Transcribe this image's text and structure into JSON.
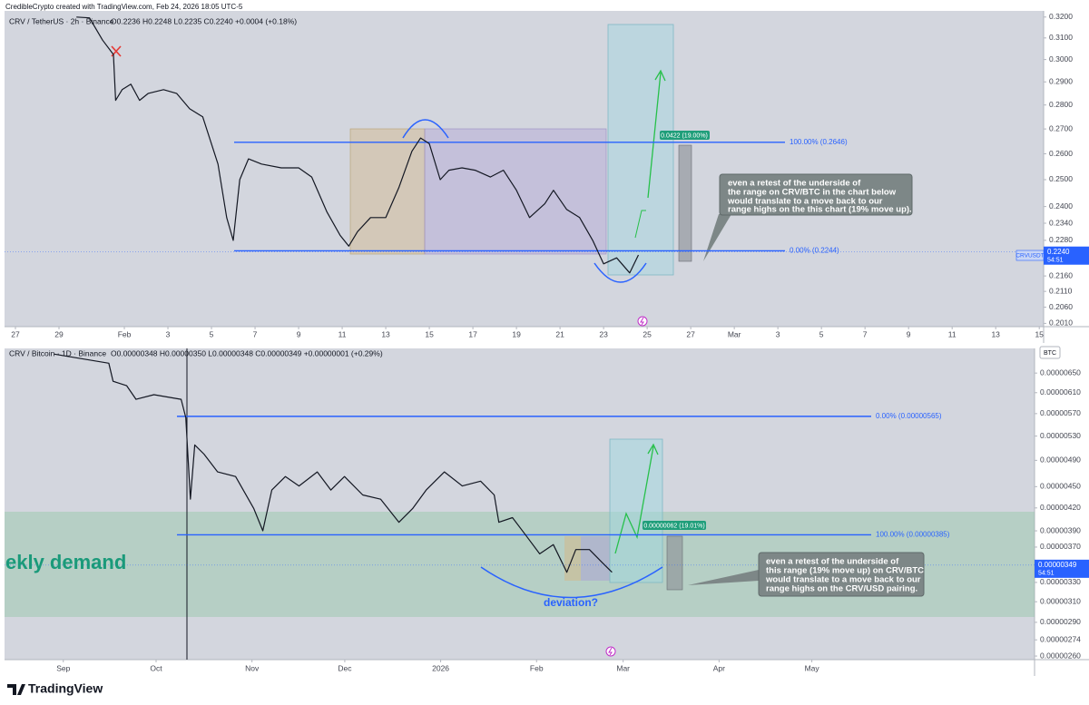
{
  "header": {
    "attribution": "CredibleCrypto created with TradingView.com, Feb 24, 2026 18:05 UTC-5"
  },
  "footer": {
    "brand": "TradingView"
  },
  "chart_data": [
    {
      "type": "line",
      "title": "CRV / TetherUS · 2h · Binance",
      "ohlc": "O0.2236 H0.2248 L0.2235 C0.2240 +0.0004 (+0.18%)",
      "log_scale": true,
      "grid": false,
      "color": "#131722",
      "x": [
        2.8,
        3.4,
        4.0,
        4.5,
        4.6,
        4.9,
        5.3,
        5.7,
        6.1,
        6.8,
        7.4,
        8.0,
        8.6,
        9.3,
        9.7,
        10.0,
        10.3,
        10.7,
        11.3,
        12.2,
        13.0,
        13.6,
        14.3,
        14.9,
        15.3,
        15.7,
        16.3,
        17.0,
        17.6,
        18.2,
        18.6,
        19.0,
        19.5,
        19.9,
        20.5,
        21.1,
        21.8,
        22.4,
        23.0,
        23.6,
        24.3,
        24.7,
        25.3,
        25.9,
        26.5,
        27.0,
        27.6,
        28.2,
        28.6
      ],
      "values": [
        0.32,
        0.3196,
        0.309,
        0.3023,
        0.282,
        0.2866,
        0.289,
        0.282,
        0.285,
        0.2866,
        0.285,
        0.2784,
        0.275,
        0.256,
        0.236,
        0.228,
        0.25,
        0.258,
        0.256,
        0.2545,
        0.2545,
        0.251,
        0.238,
        0.2298,
        0.226,
        0.231,
        0.236,
        0.236,
        0.247,
        0.261,
        0.2663,
        0.264,
        0.25,
        0.2536,
        0.2545,
        0.2536,
        0.251,
        0.2536,
        0.246,
        0.236,
        0.241,
        0.246,
        0.239,
        0.236,
        0.228,
        0.22,
        0.222,
        0.217,
        0.223
      ],
      "xlim": [
        -0.5,
        47.2
      ],
      "xticks": [
        {
          "value": 0,
          "label": "27"
        },
        {
          "value": 2,
          "label": "29"
        },
        {
          "value": 5,
          "label": "Feb"
        },
        {
          "value": 7,
          "label": "3"
        },
        {
          "value": 9,
          "label": "5"
        },
        {
          "value": 11,
          "label": "7"
        },
        {
          "value": 13,
          "label": "9"
        },
        {
          "value": 15,
          "label": "11"
        },
        {
          "value": 17,
          "label": "13"
        },
        {
          "value": 19,
          "label": "15"
        },
        {
          "value": 21,
          "label": "17"
        },
        {
          "value": 23,
          "label": "19"
        },
        {
          "value": 25,
          "label": "21"
        },
        {
          "value": 27,
          "label": "23"
        },
        {
          "value": 29,
          "label": "25"
        },
        {
          "value": 31,
          "label": "27"
        },
        {
          "value": 33,
          "label": "Mar"
        },
        {
          "value": 35,
          "label": "3"
        },
        {
          "value": 37,
          "label": "5"
        },
        {
          "value": 39,
          "label": "7"
        },
        {
          "value": 41,
          "label": "9"
        },
        {
          "value": 43,
          "label": "11"
        },
        {
          "value": 45,
          "label": "13"
        },
        {
          "value": 47,
          "label": "15"
        }
      ],
      "ylim": [
        0.2,
        0.323
      ],
      "yticks": [
        {
          "value": 0.32,
          "label": "0.3200"
        },
        {
          "value": 0.31,
          "label": "0.3100"
        },
        {
          "value": 0.3,
          "label": "0.3000"
        },
        {
          "value": 0.29,
          "label": "0.2900"
        },
        {
          "value": 0.28,
          "label": "0.2800"
        },
        {
          "value": 0.27,
          "label": "0.2700"
        },
        {
          "value": 0.26,
          "label": "0.2600"
        },
        {
          "value": 0.25,
          "label": "0.2500"
        },
        {
          "value": 0.24,
          "label": "0.2400"
        },
        {
          "value": 0.234,
          "label": "0.2340"
        },
        {
          "value": 0.228,
          "label": "0.2280"
        },
        {
          "value": 0.216,
          "label": "0.2160"
        },
        {
          "value": 0.211,
          "label": "0.2110"
        },
        {
          "value": 0.206,
          "label": "0.2060"
        },
        {
          "value": 0.201,
          "label": "0.2010"
        }
      ],
      "levels": [
        {
          "value": 0.2646,
          "label": "100.00% (0.2646)"
        },
        {
          "value": 0.2244,
          "label": "0.00% (0.2244)"
        }
      ],
      "last_price": {
        "value": 0.224,
        "label": "0.2240"
      },
      "countdown": "54:51",
      "price_tag_symbol": "CRVUSDT",
      "projection_label": "0.0422 (19.00%)",
      "callout": [
        "even a retest of the underside of",
        "the range on CRV/BTC in the chart below",
        "would translate to a move back to our",
        "range highs on the this chart (19% move up)."
      ]
    },
    {
      "type": "line",
      "title": "CRV / Bitcoin · 1D · Binance",
      "ohlc": "O0.00000348 H0.00000350 L0.00000348 C0.00000349 +0.00000001 (+0.29%)",
      "log_scale": true,
      "grid": false,
      "color": "#131722",
      "x": [
        -2.9,
        5.9,
        14.7,
        16.1,
        20.5,
        23.5,
        29.3,
        38.1,
        39.6,
        41.1,
        42.5,
        45.5,
        49.9,
        55.7,
        61.6,
        64.5,
        67.4,
        71.8,
        76.2,
        82.1,
        86.5,
        90.9,
        96.8,
        102.6,
        108.5,
        112.9,
        117.3,
        123.2,
        129.0,
        134.9,
        139.3,
        140.8,
        145.2,
        149.6,
        154.0,
        158.4,
        162.8,
        165.7,
        170.1,
        174.5,
        177.4
      ],
      "values": [
        6.91e-06,
        6.81e-06,
        6.71e-06,
        6.33e-06,
        6.24e-06,
        5.97e-06,
        6.06e-06,
        5.97e-06,
        5.63e-06,
        4.32e-06,
        5.15e-06,
        5e-06,
        4.72e-06,
        4.65e-06,
        4.19e-06,
        3.9e-06,
        4.45e-06,
        4.65e-06,
        4.51e-06,
        4.72e-06,
        4.45e-06,
        4.65e-06,
        4.38e-06,
        4.32e-06,
        4.01e-06,
        4.19e-06,
        4.45e-06,
        4.72e-06,
        4.51e-06,
        4.58e-06,
        4.38e-06,
        4.01e-06,
        4.07e-06,
        3.84e-06,
        3.62e-06,
        3.73e-06,
        3.41e-06,
        3.67e-06,
        3.67e-06,
        3.51e-06,
        3.41e-06
      ],
      "xlim": [
        -19,
        314
      ],
      "xticks": [
        {
          "value": 0,
          "label": "Sep"
        },
        {
          "value": 30,
          "label": "Oct"
        },
        {
          "value": 61,
          "label": "Nov"
        },
        {
          "value": 91,
          "label": "Dec"
        },
        {
          "value": 122,
          "label": "2026"
        },
        {
          "value": 153,
          "label": "Feb"
        },
        {
          "value": 181,
          "label": "Mar"
        },
        {
          "value": 212,
          "label": "Apr"
        },
        {
          "value": 242,
          "label": "May"
        }
      ],
      "ylim": [
        2.57e-06,
        7.04e-06
      ],
      "yticks": [
        {
          "value": 6.5e-06,
          "label": "0.00000650"
        },
        {
          "value": 6.1e-06,
          "label": "0.00000610"
        },
        {
          "value": 5.7e-06,
          "label": "0.00000570"
        },
        {
          "value": 5.3e-06,
          "label": "0.00000530"
        },
        {
          "value": 4.9e-06,
          "label": "0.00000490"
        },
        {
          "value": 4.5e-06,
          "label": "0.00000450"
        },
        {
          "value": 4.2e-06,
          "label": "0.00000420"
        },
        {
          "value": 3.9e-06,
          "label": "0.00000390"
        },
        {
          "value": 3.7e-06,
          "label": "0.00000370"
        },
        {
          "value": 3.5e-06,
          "label": "0.00000350"
        },
        {
          "value": 3.3e-06,
          "label": "0.00000330"
        },
        {
          "value": 3.1e-06,
          "label": "0.00000310"
        },
        {
          "value": 2.9e-06,
          "label": "0.00000290"
        },
        {
          "value": 2.74e-06,
          "label": "0.00000274"
        },
        {
          "value": 2.6e-06,
          "label": "0.00000260"
        }
      ],
      "levels": [
        {
          "value": 5.65e-06,
          "label": "0.00% (0.00000565)"
        },
        {
          "value": 3.85e-06,
          "label": "100.00% (0.00000385)"
        }
      ],
      "last_price": {
        "value": 3.49e-06,
        "label": "0.00000349"
      },
      "countdown": "54:51",
      "currency": "BTC",
      "zone_label": "ekly demand",
      "arc_label": "deviation?",
      "projection_label": "0.00000062 (19.01%)",
      "callout": [
        "even a retest of the underside of",
        "this range (19% move up) on CRV/BTC",
        "would translate to a move back to our",
        "range highs on the CRV/USD pairing."
      ]
    }
  ]
}
